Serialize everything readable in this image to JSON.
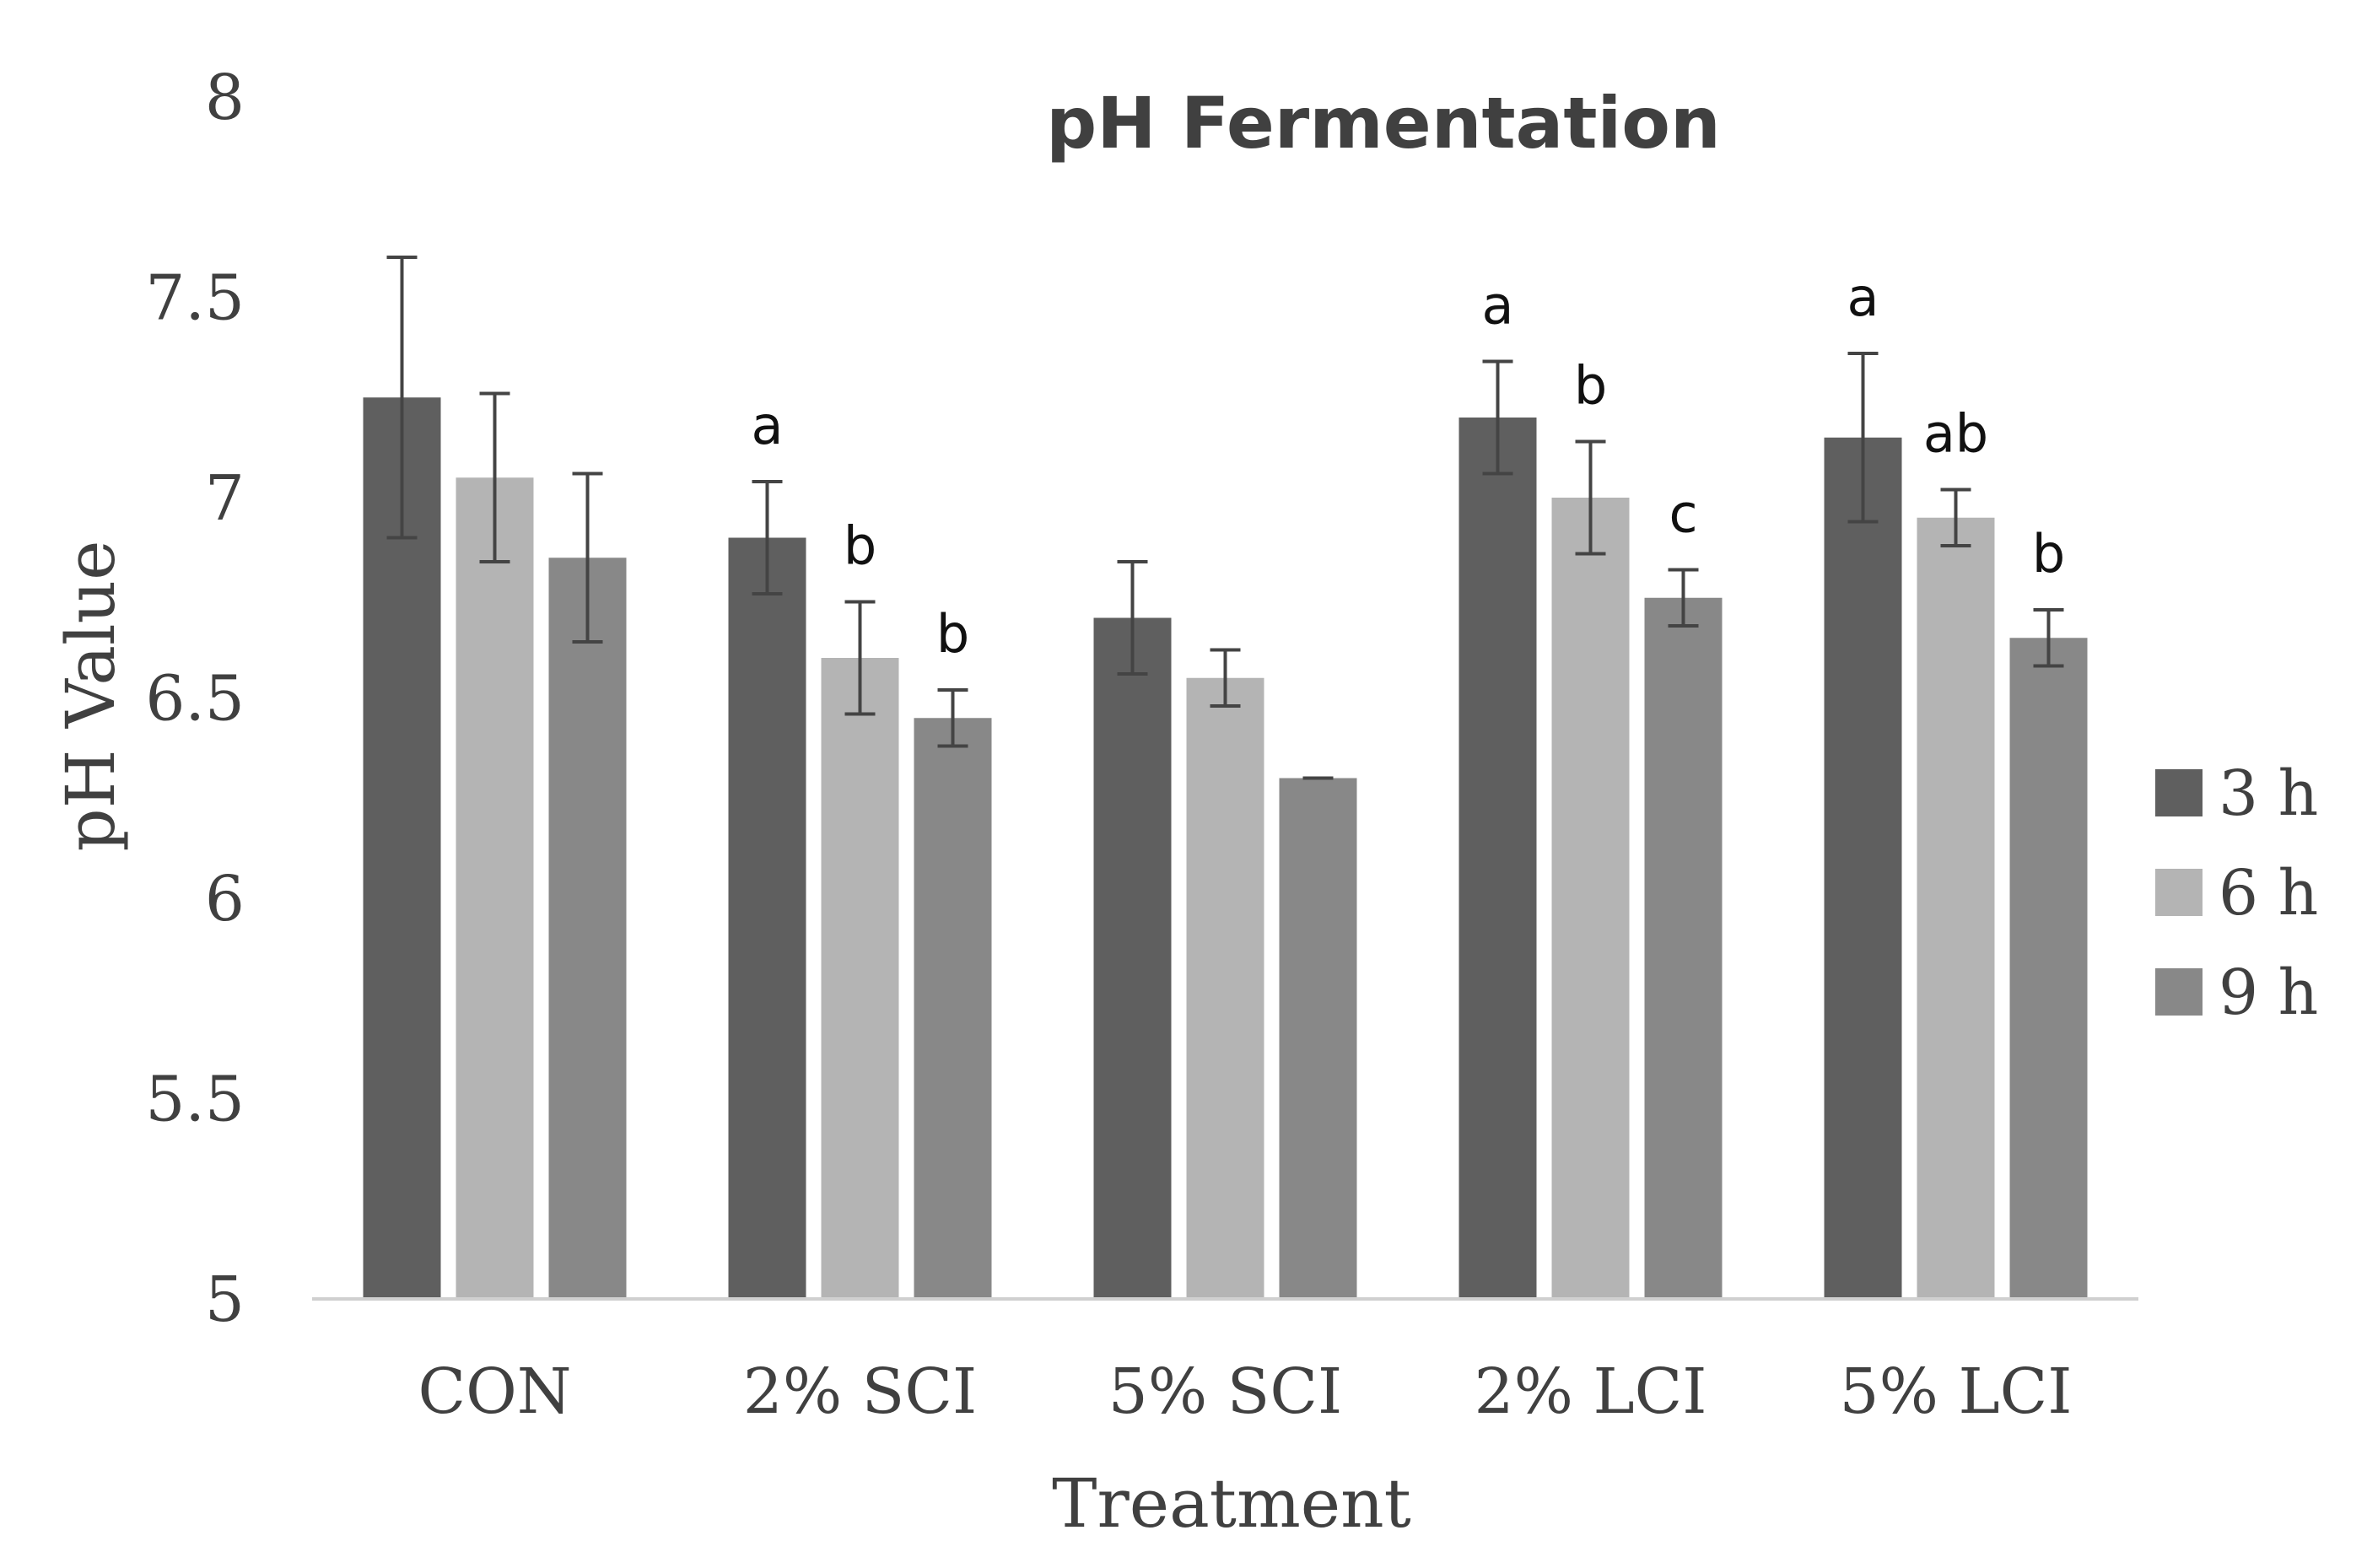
{
  "chart_data": {
    "type": "bar",
    "title": "pH Fermentation",
    "xlabel": "Treatment",
    "ylabel": "pH Value",
    "ylim": [
      5,
      8
    ],
    "yticks": [
      5,
      5.5,
      6,
      6.5,
      7,
      7.5,
      8
    ],
    "ytick_labels": [
      "5",
      "5.5",
      "6",
      "6.5",
      "7",
      "7.5",
      "8"
    ],
    "grid": false,
    "legend_position": "right",
    "categories": [
      "CON",
      "2% SCI",
      "5% SCI",
      "2% LCI",
      "5% LCI"
    ],
    "series": [
      {
        "name": "3 h",
        "color": "#5f5f5f",
        "values": [
          7.25,
          6.9,
          6.7,
          7.2,
          7.15
        ],
        "errors": [
          0.35,
          0.14,
          0.14,
          0.14,
          0.21
        ],
        "annotations": [
          "",
          "a",
          "",
          "a",
          "a"
        ]
      },
      {
        "name": "6 h",
        "color": "#b4b4b4",
        "values": [
          7.05,
          6.6,
          6.55,
          7.0,
          6.95
        ],
        "errors": [
          0.21,
          0.14,
          0.07,
          0.14,
          0.07
        ],
        "annotations": [
          "",
          "b",
          "",
          "b",
          "ab"
        ]
      },
      {
        "name": "9 h",
        "color": "#888888",
        "values": [
          6.85,
          6.45,
          6.3,
          6.75,
          6.65
        ],
        "errors": [
          0.21,
          0.07,
          0.0,
          0.07,
          0.07
        ],
        "annotations": [
          "",
          "b",
          "",
          "c",
          "b"
        ]
      }
    ]
  }
}
